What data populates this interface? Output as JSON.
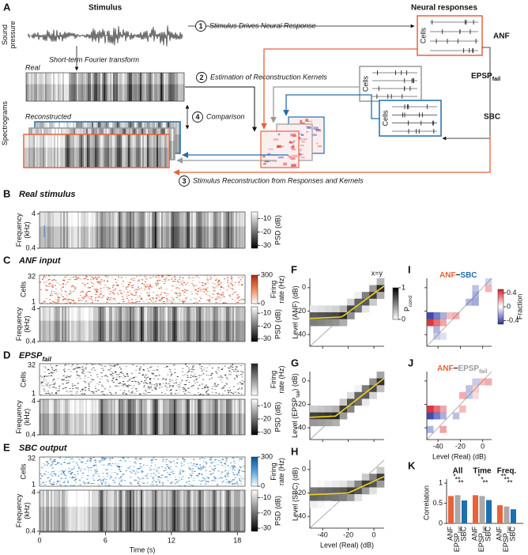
{
  "panel_a": {
    "letter": "A",
    "stimulus_heading": "Stimulus",
    "responses_heading": "Neural responses",
    "sound_pressure": [
      "Sound",
      "pressure"
    ],
    "spectrograms": "Spectrograms",
    "stft": "Short-term Fourier transform",
    "real": "Real",
    "reconstructed": "Reconstructed",
    "steps": [
      {
        "number": "1",
        "label": "Stimulus Drives Neural Response"
      },
      {
        "number": "2",
        "label": "Estimation of Reconstruction Kernels"
      },
      {
        "number": "3",
        "label": "Stimulus Reconstruction from Responses and Kernels"
      },
      {
        "number": "4",
        "label": "Comparison"
      }
    ],
    "cells": "Cells",
    "anf": "ANF",
    "epsp": "EPSP",
    "epsp_sub": "fail",
    "sbc": "SBC"
  },
  "spectro_common": {
    "freq_label": [
      "Frequency",
      "(kHz)"
    ],
    "freq_ticks": [
      4,
      0.4
    ],
    "freq_lim": [
      0.4,
      4.6
    ],
    "psd_label": "PSD (dB)",
    "psd_ticks": [
      -10,
      -20,
      -30
    ],
    "psd_lim": [
      -32,
      -5
    ],
    "cells_label": "Cells",
    "cells_ticks": [
      32,
      1
    ],
    "rate_label": [
      "Firing",
      "rate (Hz)"
    ],
    "rate_ticks": [
      300,
      0
    ],
    "rate_lim": [
      0,
      300
    ]
  },
  "panel_b": {
    "letter": "B",
    "title": "Real stimulus"
  },
  "panel_c": {
    "letter": "C",
    "title": "ANF input"
  },
  "panel_d": {
    "letter": "D",
    "title": "EPSP",
    "title_sub": "fail"
  },
  "panel_e": {
    "letter": "E",
    "title": "SBC output"
  },
  "time_axis": {
    "label": "Time (s)",
    "ticks": [
      0,
      6,
      12,
      18
    ],
    "lim": [
      0,
      18.7
    ]
  },
  "level_common": {
    "xlabel": "Level (Real) (dB)",
    "ticks": [
      0,
      -20,
      -40
    ],
    "lim": [
      -50,
      8
    ],
    "xy_note": "x=y",
    "pcond": "P",
    "pcond_sub": "cond",
    "pcond_ticks": [
      1,
      0
    ],
    "fraction_label": "Fraction",
    "fraction_ticks": [
      0.4,
      0,
      -0.4
    ],
    "fraction_lim": [
      -0.5,
      0.5
    ]
  },
  "panel_f": {
    "letter": "F",
    "ylabel": "Level (ANF) (dB)"
  },
  "panel_g": {
    "letter": "G",
    "ylabel": "Level (EPSP",
    "ylabel_sub": "fail",
    "ylabel_end": ") (dB)"
  },
  "panel_h": {
    "letter": "H",
    "ylabel": "Level (SBC) (dB)"
  },
  "panel_i": {
    "letter": "I",
    "minuend": "ANF",
    "op": "−",
    "subtrahend": "SBC"
  },
  "panel_j": {
    "letter": "J",
    "minuend": "ANF",
    "op": "−",
    "subtrahend": "EPSP",
    "subtrahend_sub": "fail"
  },
  "panel_k": {
    "type": "bar",
    "letter": "K",
    "ylabel": "Correlation",
    "groups": [
      "All",
      "Time",
      "Freq."
    ],
    "ylim": [
      0,
      1.1
    ],
    "yticks": [
      0,
      0.5,
      1
    ],
    "series": [
      {
        "name": "ANF",
        "color": "#e8623a",
        "values": [
          0.68,
          0.7,
          0.45
        ]
      },
      {
        "name": "EPSP",
        "name_sub": "fail",
        "color": "#a9a9a9",
        "values": [
          0.7,
          0.68,
          0.42
        ]
      },
      {
        "name": "SBC",
        "color": "#1f6fae",
        "values": [
          0.57,
          0.58,
          0.35
        ]
      }
    ],
    "significance": [
      [
        "*",
        "**",
        "**"
      ],
      [
        "*",
        "*",
        "**"
      ],
      [
        "**",
        "**",
        "**"
      ]
    ]
  }
}
